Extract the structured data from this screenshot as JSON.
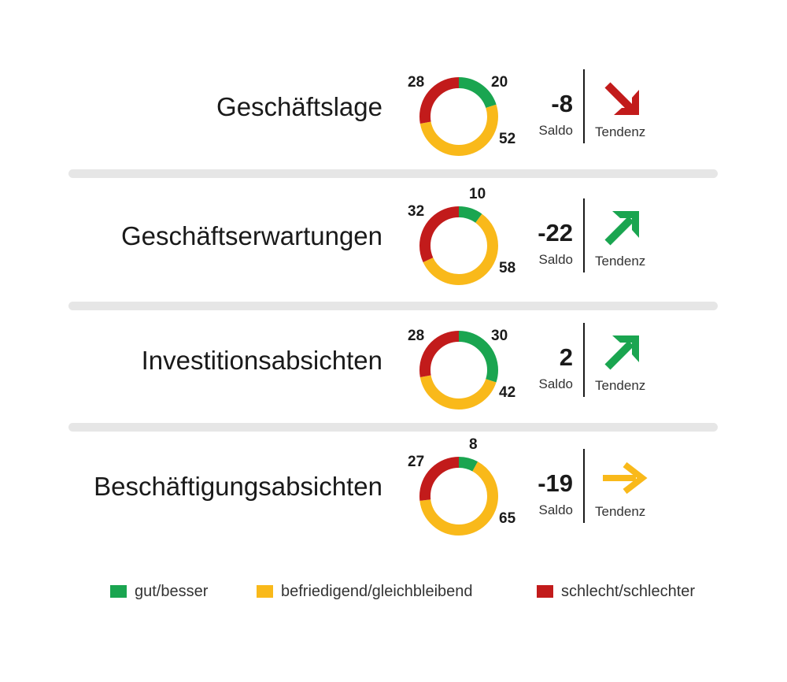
{
  "chart_data": {
    "type": "donut",
    "title": "",
    "legend": [
      {
        "key": "good",
        "label": "gut/besser",
        "color": "#1aa550"
      },
      {
        "key": "neutral",
        "label": "befriedigend/gleichbleibend",
        "color": "#f9b91a"
      },
      {
        "key": "bad",
        "label": "schlecht/schlechter",
        "color": "#c21b1b"
      }
    ],
    "saldo_label": "Saldo",
    "tendenz_label": "Tendenz",
    "rows": [
      {
        "label": "Geschäftslage",
        "good": 20,
        "neutral": 52,
        "bad": 28,
        "saldo": "-8",
        "tendency": "down"
      },
      {
        "label": "Geschäftserwartungen",
        "good": 10,
        "neutral": 58,
        "bad": 32,
        "saldo": "-22",
        "tendency": "up"
      },
      {
        "label": "Investitionsabsichten",
        "good": 30,
        "neutral": 42,
        "bad": 28,
        "saldo": "2",
        "tendency": "up"
      },
      {
        "label": "Beschäftigungsabsichten",
        "good": 8,
        "neutral": 65,
        "bad": 27,
        "saldo": "-19",
        "tendency": "right"
      }
    ]
  }
}
